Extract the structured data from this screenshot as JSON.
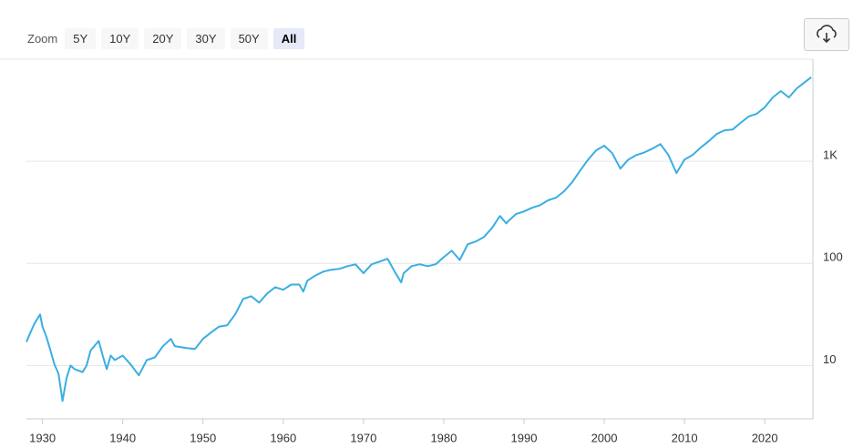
{
  "toolbar": {
    "label": "Zoom",
    "buttons": [
      "5Y",
      "10Y",
      "20Y",
      "30Y",
      "50Y",
      "All"
    ]
  },
  "chart_data": {
    "type": "line",
    "yscale": "log",
    "color": "#3aaee2",
    "grid": true,
    "x": [
      1928.0,
      1928.5,
      1929.0,
      1929.7,
      1930.0,
      1930.5,
      1931.0,
      1931.5,
      1932.0,
      1932.5,
      1933.0,
      1933.5,
      1934.0,
      1935.0,
      1935.5,
      1936.0,
      1937.0,
      1937.5,
      1938.0,
      1938.5,
      1939.0,
      1940.0,
      1941.0,
      1942.0,
      1943.0,
      1944.0,
      1945.0,
      1946.0,
      1946.5,
      1948.0,
      1949.0,
      1950.0,
      1951.0,
      1952.0,
      1953.0,
      1954.0,
      1955.0,
      1956.0,
      1957.0,
      1958.0,
      1959.0,
      1960.0,
      1961.0,
      1962.0,
      1962.5,
      1963.0,
      1964.0,
      1965.0,
      1966.0,
      1967.0,
      1968.0,
      1969.0,
      1970.0,
      1971.0,
      1972.0,
      1973.0,
      1974.0,
      1974.7,
      1975.0,
      1976.0,
      1977.0,
      1978.0,
      1979.0,
      1980.0,
      1981.0,
      1982.0,
      1983.0,
      1984.0,
      1985.0,
      1986.0,
      1987.0,
      1987.8,
      1988.0,
      1989.0,
      1990.0,
      1991.0,
      1992.0,
      1993.0,
      1994.0,
      1995.0,
      1996.0,
      1997.0,
      1998.0,
      1999.0,
      2000.0,
      2001.0,
      2002.0,
      2003.0,
      2004.0,
      2005.0,
      2006.0,
      2007.0,
      2008.0,
      2009.0,
      2010.0,
      2011.0,
      2012.0,
      2013.0,
      2014.0,
      2015.0,
      2016.0,
      2017.0,
      2018.0,
      2019.0,
      2020.0,
      2021.0,
      2022.0,
      2023.0,
      2024.0,
      2025.0,
      2025.8
    ],
    "values": [
      17,
      21,
      25.7,
      31.6,
      24,
      19,
      14,
      10.2,
      8.3,
      4.5,
      7.5,
      10,
      9.2,
      8.6,
      10,
      14,
      17.4,
      12.5,
      9.2,
      12.5,
      11.3,
      12.5,
      10.2,
      8,
      11.3,
      12,
      15.4,
      18.2,
      15.4,
      14.8,
      14.5,
      18.2,
      21,
      24,
      24.7,
      31.6,
      44.8,
      47.7,
      41.3,
      50.7,
      58.5,
      55.2,
      62,
      62,
      52.8,
      67.6,
      76,
      83,
      86.7,
      88.4,
      94,
      97.8,
      80,
      97.8,
      104,
      111,
      80,
      65,
      80,
      94,
      98,
      94,
      98,
      115,
      133,
      108,
      154,
      164,
      181,
      222,
      291,
      246,
      258,
      304,
      323,
      350,
      372,
      415,
      440,
      509,
      623,
      811,
      1041,
      1280,
      1420,
      1200,
      847,
      1040,
      1150,
      1220,
      1330,
      1475,
      1150,
      766,
      1040,
      1150,
      1360,
      1570,
      1850,
      2010,
      2050,
      2380,
      2750,
      2920,
      3380,
      4220,
      4870,
      4220,
      5180,
      5960,
      6660
    ],
    "xlim": [
      1928,
      2026
    ],
    "xticks": [
      1930,
      1940,
      1950,
      1960,
      1970,
      1980,
      1990,
      2000,
      2010,
      2020
    ],
    "ylim": [
      3,
      10000
    ],
    "yticks": [
      10,
      100,
      {
        "value": 1000,
        "label": "1K"
      }
    ]
  }
}
